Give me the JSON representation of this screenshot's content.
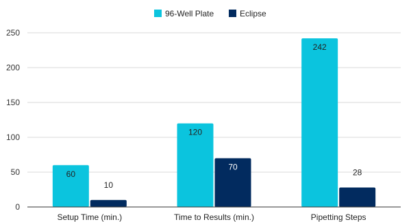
{
  "chart_data": {
    "type": "bar",
    "title": "",
    "xlabel": "",
    "ylabel": "",
    "categories": [
      "Setup Time (min.)",
      "Time to Results (min.)",
      "Pipetting Steps"
    ],
    "series": [
      {
        "name": "96-Well Plate",
        "values": [
          60,
          120,
          242
        ],
        "color": "#0BC4DE",
        "label_color": "#222222"
      },
      {
        "name": "Eclipse",
        "values": [
          10,
          70,
          28
        ],
        "color": "#022B5F",
        "label_color": "#ffffff"
      }
    ],
    "ylim": [
      0,
      250
    ],
    "yticks": [
      0,
      50,
      100,
      150,
      200,
      250
    ],
    "grid": true,
    "legend_position": "top-center",
    "data_labels": true
  }
}
